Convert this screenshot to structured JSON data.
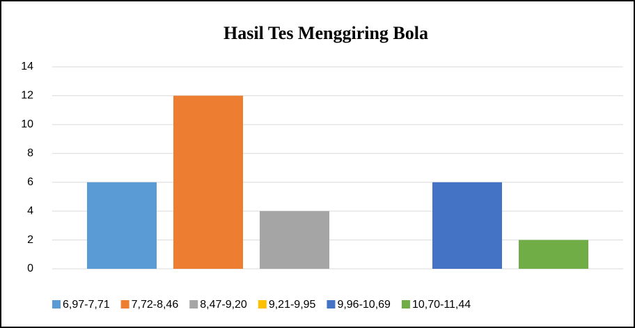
{
  "chart_data": {
    "type": "bar",
    "title": "Hasil Tes Menggiring Bola",
    "series": [
      {
        "name": "6,97-7,71",
        "color": "#5b9bd5",
        "values": [
          6
        ]
      },
      {
        "name": "7,72-8,46",
        "color": "#ed7d31",
        "values": [
          12
        ]
      },
      {
        "name": "8,47-9,20",
        "color": "#a5a5a5",
        "values": [
          4
        ]
      },
      {
        "name": "9,21-9,95",
        "color": "#ffc000",
        "values": [
          0
        ]
      },
      {
        "name": "9,96-10,69",
        "color": "#4472c4",
        "values": [
          6
        ]
      },
      {
        "name": "10,70-11,44",
        "color": "#70ad47",
        "values": [
          2
        ]
      }
    ],
    "ylim": [
      0,
      14
    ],
    "yticks": [
      0,
      2,
      4,
      6,
      8,
      10,
      12,
      14
    ],
    "grid": true,
    "legend": "bottom"
  }
}
